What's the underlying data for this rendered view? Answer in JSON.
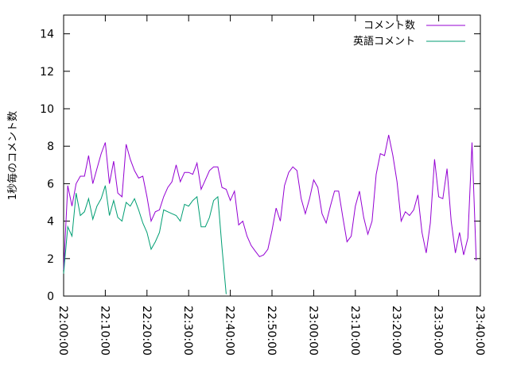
{
  "chart_data": {
    "type": "line",
    "title": "",
    "xlabel": "",
    "ylabel": "1秒毎のコメント数",
    "xlim": [
      "22:00:00",
      "23:40:00"
    ],
    "ylim": [
      0,
      15
    ],
    "x_tick_labels": [
      "22:00:00",
      "22:10:00",
      "22:20:00",
      "22:30:00",
      "22:40:00",
      "22:50:00",
      "23:00:00",
      "23:10:00",
      "23:20:00",
      "23:30:00",
      "23:40:00"
    ],
    "y_ticks": [
      0,
      2,
      4,
      6,
      8,
      10,
      12,
      14
    ],
    "grid": false,
    "legend": "top-right",
    "series": [
      {
        "name": "コメント数",
        "color": "#9400d3",
        "points": [
          [
            "22:00:00",
            1.4
          ],
          [
            "22:01:00",
            5.9
          ],
          [
            "22:02:00",
            4.8
          ],
          [
            "22:03:00",
            6.0
          ],
          [
            "22:04:00",
            6.4
          ],
          [
            "22:05:00",
            6.4
          ],
          [
            "22:06:00",
            7.5
          ],
          [
            "22:07:00",
            6.0
          ],
          [
            "22:08:00",
            6.8
          ],
          [
            "22:09:00",
            7.6
          ],
          [
            "22:10:00",
            8.2
          ],
          [
            "22:11:00",
            6.0
          ],
          [
            "22:12:00",
            7.2
          ],
          [
            "22:13:00",
            5.5
          ],
          [
            "22:14:00",
            5.3
          ],
          [
            "22:15:00",
            8.1
          ],
          [
            "22:16:00",
            7.3
          ],
          [
            "22:17:00",
            6.7
          ],
          [
            "22:18:00",
            6.3
          ],
          [
            "22:19:00",
            6.4
          ],
          [
            "22:20:00",
            5.3
          ],
          [
            "22:21:00",
            4.0
          ],
          [
            "22:22:00",
            4.5
          ],
          [
            "22:23:00",
            4.6
          ],
          [
            "22:24:00",
            5.3
          ],
          [
            "22:25:00",
            5.8
          ],
          [
            "22:26:00",
            6.1
          ],
          [
            "22:27:00",
            7.0
          ],
          [
            "22:28:00",
            6.1
          ],
          [
            "22:29:00",
            6.6
          ],
          [
            "22:30:00",
            6.6
          ],
          [
            "22:31:00",
            6.5
          ],
          [
            "22:32:00",
            7.1
          ],
          [
            "22:33:00",
            5.7
          ],
          [
            "22:34:00",
            6.2
          ],
          [
            "22:35:00",
            6.7
          ],
          [
            "22:36:00",
            6.9
          ],
          [
            "22:37:00",
            6.9
          ],
          [
            "22:38:00",
            5.8
          ],
          [
            "22:39:00",
            5.7
          ],
          [
            "22:40:00",
            5.1
          ],
          [
            "22:41:00",
            5.6
          ],
          [
            "22:42:00",
            3.8
          ],
          [
            "22:43:00",
            4.0
          ],
          [
            "22:44:00",
            3.2
          ],
          [
            "22:45:00",
            2.7
          ],
          [
            "22:46:00",
            2.4
          ],
          [
            "22:47:00",
            2.1
          ],
          [
            "22:48:00",
            2.2
          ],
          [
            "22:49:00",
            2.5
          ],
          [
            "22:50:00",
            3.5
          ],
          [
            "22:51:00",
            4.7
          ],
          [
            "22:52:00",
            4.0
          ],
          [
            "22:53:00",
            5.9
          ],
          [
            "22:54:00",
            6.6
          ],
          [
            "22:55:00",
            6.9
          ],
          [
            "22:56:00",
            6.7
          ],
          [
            "22:57:00",
            5.2
          ],
          [
            "22:58:00",
            4.4
          ],
          [
            "22:59:00",
            5.2
          ],
          [
            "23:00:00",
            6.2
          ],
          [
            "23:01:00",
            5.8
          ],
          [
            "23:02:00",
            4.4
          ],
          [
            "23:03:00",
            3.9
          ],
          [
            "23:04:00",
            4.8
          ],
          [
            "23:05:00",
            5.6
          ],
          [
            "23:06:00",
            5.6
          ],
          [
            "23:07:00",
            4.2
          ],
          [
            "23:08:00",
            2.9
          ],
          [
            "23:09:00",
            3.2
          ],
          [
            "23:10:00",
            4.8
          ],
          [
            "23:11:00",
            5.6
          ],
          [
            "23:12:00",
            4.2
          ],
          [
            "23:13:00",
            3.3
          ],
          [
            "23:14:00",
            4.0
          ],
          [
            "23:15:00",
            6.5
          ],
          [
            "23:16:00",
            7.6
          ],
          [
            "23:17:00",
            7.5
          ],
          [
            "23:18:00",
            8.6
          ],
          [
            "23:19:00",
            7.5
          ],
          [
            "23:20:00",
            6.1
          ],
          [
            "23:21:00",
            4.0
          ],
          [
            "23:22:00",
            4.5
          ],
          [
            "23:23:00",
            4.3
          ],
          [
            "23:24:00",
            4.6
          ],
          [
            "23:25:00",
            5.4
          ],
          [
            "23:26:00",
            3.4
          ],
          [
            "23:27:00",
            2.3
          ],
          [
            "23:28:00",
            3.9
          ],
          [
            "23:29:00",
            7.3
          ],
          [
            "23:30:00",
            5.3
          ],
          [
            "23:31:00",
            5.2
          ],
          [
            "23:32:00",
            6.8
          ],
          [
            "23:33:00",
            4.0
          ],
          [
            "23:34:00",
            2.3
          ],
          [
            "23:35:00",
            3.4
          ],
          [
            "23:36:00",
            2.2
          ],
          [
            "23:37:00",
            3.1
          ],
          [
            "23:38:00",
            8.2
          ],
          [
            "23:39:00",
            1.9
          ]
        ]
      },
      {
        "name": "英語コメント",
        "color": "#009e73",
        "points": [
          [
            "22:00:00",
            1.2
          ],
          [
            "22:01:00",
            3.7
          ],
          [
            "22:02:00",
            3.2
          ],
          [
            "22:03:00",
            5.5
          ],
          [
            "22:04:00",
            4.3
          ],
          [
            "22:05:00",
            4.5
          ],
          [
            "22:06:00",
            5.2
          ],
          [
            "22:07:00",
            4.1
          ],
          [
            "22:08:00",
            4.8
          ],
          [
            "22:09:00",
            5.2
          ],
          [
            "22:10:00",
            5.9
          ],
          [
            "22:11:00",
            4.3
          ],
          [
            "22:12:00",
            5.1
          ],
          [
            "22:13:00",
            4.2
          ],
          [
            "22:14:00",
            4.0
          ],
          [
            "22:15:00",
            5.0
          ],
          [
            "22:16:00",
            4.8
          ],
          [
            "22:17:00",
            5.2
          ],
          [
            "22:18:00",
            4.6
          ],
          [
            "22:19:00",
            3.9
          ],
          [
            "22:20:00",
            3.4
          ],
          [
            "22:21:00",
            2.5
          ],
          [
            "22:22:00",
            2.9
          ],
          [
            "22:23:00",
            3.4
          ],
          [
            "22:24:00",
            4.6
          ],
          [
            "22:25:00",
            4.5
          ],
          [
            "22:26:00",
            4.4
          ],
          [
            "22:27:00",
            4.3
          ],
          [
            "22:28:00",
            4.0
          ],
          [
            "22:29:00",
            4.9
          ],
          [
            "22:30:00",
            4.8
          ],
          [
            "22:31:00",
            5.1
          ],
          [
            "22:32:00",
            5.3
          ],
          [
            "22:33:00",
            3.7
          ],
          [
            "22:34:00",
            3.7
          ],
          [
            "22:35:00",
            4.2
          ],
          [
            "22:36:00",
            5.1
          ],
          [
            "22:37:00",
            5.3
          ],
          [
            "22:38:00",
            2.6
          ],
          [
            "22:39:00",
            0.1
          ]
        ]
      }
    ]
  }
}
